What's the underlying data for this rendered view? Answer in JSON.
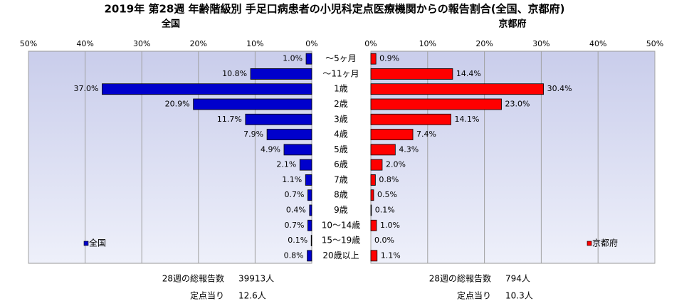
{
  "title": "2019年 第28週 年齢階級別 手足口病患者の小児科定点医療機関からの報告割合(全国、京都府)",
  "chart_data": [
    {
      "type": "bar",
      "orientation": "horizontal",
      "title": "全国",
      "x_reversed": true,
      "legend": "lower left",
      "categories": [
        "～5ヶ月",
        "～11ヶ月",
        "1歳",
        "2歳",
        "3歳",
        "4歳",
        "5歳",
        "6歳",
        "7歳",
        "8歳",
        "9歳",
        "10～14歳",
        "15～19歳",
        "20歳以上"
      ],
      "series": [
        {
          "name": "全国",
          "color": "#0000cc",
          "values": [
            1.0,
            10.8,
            37.0,
            20.9,
            11.7,
            7.9,
            4.9,
            2.1,
            1.1,
            0.7,
            0.4,
            0.7,
            0.1,
            0.8
          ],
          "value_labels": [
            "1.0%",
            "10.8%",
            "37.0%",
            "20.9%",
            "11.7%",
            "7.9%",
            "4.9%",
            "2.1%",
            "1.1%",
            "0.7%",
            "0.4%",
            "0.7%",
            "0.1%",
            "0.8%"
          ]
        }
      ],
      "xlim": [
        0,
        50
      ],
      "xticks": [
        {
          "value": 50,
          "label": "50%"
        },
        {
          "value": 40,
          "label": "40%"
        },
        {
          "value": 30,
          "label": "30%"
        },
        {
          "value": 20,
          "label": "20%"
        },
        {
          "value": 10,
          "label": "10%"
        },
        {
          "value": 0,
          "label": "0%"
        }
      ],
      "grid": true,
      "notes": [
        {
          "label": "28週の総報告数",
          "value": "39913人"
        },
        {
          "label": "定点当り",
          "value": "12.6人"
        }
      ]
    },
    {
      "type": "bar",
      "orientation": "horizontal",
      "title": "京都府",
      "x_reversed": false,
      "legend": "lower right",
      "series": [
        {
          "name": "京都府",
          "color": "#ff0000",
          "values": [
            0.9,
            14.4,
            30.4,
            23.0,
            14.1,
            7.4,
            4.3,
            2.0,
            0.8,
            0.5,
            0.1,
            1.0,
            0.0,
            1.1
          ],
          "value_labels": [
            "0.9%",
            "14.4%",
            "30.4%",
            "23.0%",
            "14.1%",
            "7.4%",
            "4.3%",
            "2.0%",
            "0.8%",
            "0.5%",
            "0.1%",
            "1.0%",
            "0.0%",
            "1.1%"
          ]
        }
      ],
      "xlim": [
        0,
        50
      ],
      "xticks": [
        {
          "value": 0,
          "label": "0%"
        },
        {
          "value": 10,
          "label": "10%"
        },
        {
          "value": 20,
          "label": "20%"
        },
        {
          "value": 30,
          "label": "30%"
        },
        {
          "value": 40,
          "label": "40%"
        },
        {
          "value": 50,
          "label": "50%"
        }
      ],
      "grid": true,
      "notes": [
        {
          "label": "28週の総報告数",
          "value": "794人"
        },
        {
          "label": "定点当り",
          "value": "10.3人"
        }
      ]
    }
  ]
}
